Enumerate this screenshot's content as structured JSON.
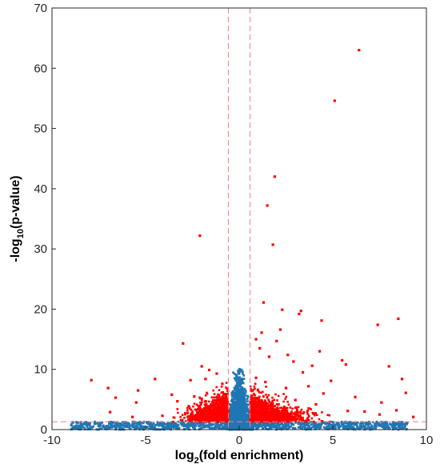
{
  "chart_data": {
    "type": "scatter",
    "title": "",
    "xlabel": {
      "main": "log",
      "sub": "2",
      "rest": "(fold enrichment)"
    },
    "ylabel": {
      "main": "-log",
      "sub": "10",
      "rest": "(p-value)"
    },
    "xlim": [
      -10,
      10
    ],
    "ylim": [
      0,
      70
    ],
    "xticks": [
      -10,
      -5,
      0,
      5,
      10
    ],
    "yticks": [
      0,
      10,
      20,
      30,
      40,
      50,
      60,
      70
    ],
    "grid": false,
    "legend": "none",
    "thresholds": {
      "fold_change_lines_x": [
        -0.58,
        0.58
      ],
      "pvalue_line_y": 1.3,
      "line_color": "#f08080"
    },
    "colors": {
      "significant": "#ff0000",
      "not_significant": "#1f77b4"
    },
    "series": [
      {
        "points": [
          [
            6.4,
            63.0
          ],
          [
            5.1,
            54.6
          ],
          [
            1.9,
            42.0
          ],
          [
            1.5,
            37.2
          ],
          [
            1.8,
            30.7
          ],
          [
            -2.1,
            32.2
          ],
          [
            1.3,
            21.1
          ],
          [
            2.3,
            19.9
          ],
          [
            3.3,
            19.7
          ],
          [
            3.2,
            19.2
          ],
          [
            4.4,
            18.1
          ],
          [
            8.5,
            18.4
          ],
          [
            7.4,
            17.4
          ],
          [
            2.2,
            16.6
          ],
          [
            -3.0,
            14.3
          ],
          [
            0.9,
            15.0
          ],
          [
            1.1,
            13.5
          ],
          [
            4.3,
            13.0
          ],
          [
            5.5,
            11.5
          ],
          [
            5.7,
            10.8
          ],
          [
            8.0,
            10.5
          ],
          [
            -2.0,
            10.5
          ],
          [
            -1.6,
            9.9
          ],
          [
            -5.4,
            6.5
          ],
          [
            -6.6,
            5.3
          ],
          [
            -7.0,
            6.9
          ],
          [
            -7.9,
            8.2
          ],
          [
            -6.9,
            2.9
          ],
          [
            -5.7,
            2.1
          ],
          [
            -5.5,
            4.5
          ],
          [
            -4.1,
            2.3
          ],
          [
            -4.5,
            8.4
          ],
          [
            -3.6,
            5.8
          ],
          [
            -3.3,
            4.7
          ],
          [
            -2.6,
            8.2
          ],
          [
            -2.4,
            5.5
          ],
          [
            8.4,
            3.2
          ],
          [
            8.9,
            6.1
          ],
          [
            8.7,
            8.4
          ],
          [
            7.6,
            4.5
          ],
          [
            7.5,
            2.5
          ],
          [
            9.3,
            2.1
          ],
          [
            6.7,
            3.0
          ],
          [
            6.2,
            5.4
          ],
          [
            5.8,
            3.1
          ],
          [
            4.9,
            8.1
          ],
          [
            4.5,
            6.0
          ],
          [
            3.9,
            10.6
          ],
          [
            3.7,
            7.2
          ],
          [
            3.4,
            9.5
          ],
          [
            2.9,
            11.3
          ],
          [
            2.6,
            12.4
          ],
          [
            2.0,
            14.7
          ],
          [
            1.6,
            12.1
          ],
          [
            1.2,
            16.1
          ],
          [
            -1.2,
            9.3
          ],
          [
            -1.8,
            8.4
          ],
          [
            -0.9,
            7.6
          ],
          [
            -0.8,
            5.8
          ],
          [
            0.9,
            8.6
          ],
          [
            1.0,
            6.6
          ],
          [
            1.4,
            7.9
          ],
          [
            2.5,
            6.9
          ],
          [
            3.0,
            4.9
          ],
          [
            4.1,
            4.2
          ]
        ]
      }
    ]
  }
}
